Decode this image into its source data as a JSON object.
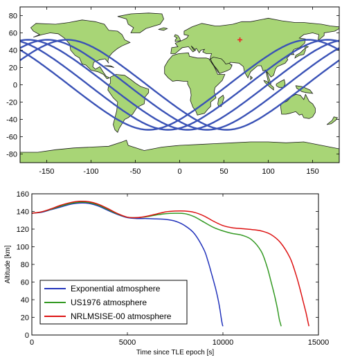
{
  "colors": {
    "land": "#a8d576",
    "land_outline": "#1a1a1a",
    "ocean": "#ffffff",
    "ground_track": "#3a52b6",
    "launch_marker": "#ee2222",
    "exponential": "#2233bb",
    "us1976": "#339922",
    "nrlmsise": "#dd1111"
  },
  "chart_data": [
    {
      "type": "line",
      "chart": "ground-track-map",
      "title": "",
      "xlabel": "",
      "ylabel": "",
      "xlim": [
        -180,
        180
      ],
      "ylim": [
        -90,
        90
      ],
      "x_ticks": [
        "-150",
        "-100",
        "-50",
        "0",
        "50",
        "100",
        "150"
      ],
      "y_ticks": [
        "80",
        "60",
        "40",
        "20",
        "0",
        "-20",
        "-40",
        "-60",
        "-80"
      ],
      "grid": false,
      "legend": "none",
      "inclination_deg": 52,
      "ground_track_node_longitudes": [
        -305,
        -283,
        -261,
        -239,
        -217
      ],
      "ground_track_lon_range": [
        -180,
        180
      ],
      "launch_site": {
        "lon": 68,
        "lat": 52
      }
    },
    {
      "type": "line",
      "chart": "altitude-decay",
      "title": "",
      "xlabel": "Time since TLE epoch [s]",
      "ylabel": "Altitude [km]",
      "xlim": [
        0,
        15000
      ],
      "ylim": [
        0,
        160
      ],
      "x_ticks": [
        "0",
        "5000",
        "10000",
        "15000"
      ],
      "y_ticks": [
        "160",
        "140",
        "120",
        "100",
        "80",
        "60",
        "40",
        "20",
        "0"
      ],
      "grid": false,
      "legend": "bottom-left",
      "series": [
        {
          "name": "Exponential atmosphere",
          "color_key": "exponential",
          "x": [
            0,
            500,
            1000,
            1500,
            2000,
            2500,
            3000,
            3500,
            4000,
            4500,
            5000,
            5500,
            6000,
            6500,
            7000,
            7500,
            8000,
            8500,
            9000,
            9200,
            9400,
            9600,
            9750,
            9850,
            9920,
            9970,
            10000
          ],
          "y": [
            138,
            139,
            142,
            145,
            148,
            149.5,
            149,
            146,
            141,
            136.5,
            133,
            132,
            132,
            131.5,
            131,
            129,
            124,
            115,
            97,
            85,
            70,
            54,
            40,
            28,
            18,
            12,
            10
          ]
        },
        {
          "name": "US1976 atmosphere",
          "color_key": "us1976",
          "x": [
            0,
            500,
            1000,
            1500,
            2000,
            2500,
            3000,
            3500,
            4000,
            4500,
            5000,
            5500,
            6000,
            6500,
            7000,
            7500,
            8000,
            8500,
            9000,
            9500,
            10000,
            10500,
            11000,
            11500,
            12000,
            12300,
            12500,
            12700,
            12850,
            12950,
            13050
          ],
          "y": [
            138,
            139.5,
            142.5,
            146,
            149,
            150.5,
            150,
            147,
            142,
            137,
            133.5,
            133,
            134,
            136,
            137.5,
            138,
            137.5,
            134,
            128,
            122,
            118,
            115,
            113,
            108,
            95,
            78,
            62,
            45,
            30,
            18,
            10
          ]
        },
        {
          "name": "NRLMSISE-00 atmosphere",
          "color_key": "nrlmsise",
          "x": [
            0,
            500,
            1000,
            1500,
            2000,
            2500,
            3000,
            3500,
            4000,
            4500,
            5000,
            5500,
            6000,
            6500,
            7000,
            7500,
            8000,
            8500,
            9000,
            9500,
            10000,
            10500,
            11000,
            11500,
            12000,
            12500,
            13000,
            13500,
            13800,
            14000,
            14200,
            14350,
            14450,
            14500
          ],
          "y": [
            138,
            139.5,
            143,
            147,
            150,
            151.5,
            151,
            148,
            143,
            137.5,
            133.5,
            133,
            134.5,
            137,
            139.5,
            140.5,
            140.5,
            139,
            135,
            129,
            124,
            121.5,
            120.5,
            119.5,
            118,
            114,
            105,
            88,
            70,
            55,
            38,
            25,
            15,
            10
          ]
        }
      ]
    }
  ]
}
